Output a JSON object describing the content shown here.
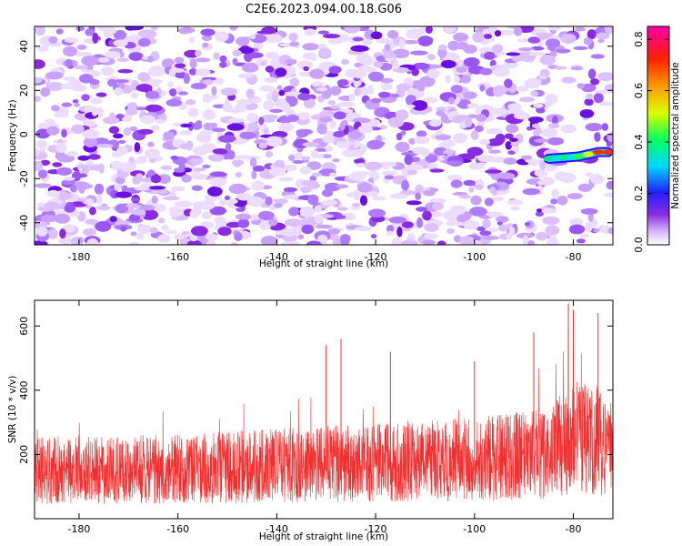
{
  "title": "C2E6.2023.094.00.18.G06",
  "chart_data": [
    {
      "type": "heatmap",
      "xlabel": "Height of straight line (km)",
      "ylabel": "Frequency (Hz)",
      "xlim": [
        -189,
        -72
      ],
      "ylim": [
        -50,
        49
      ],
      "x_ticks": [
        -180,
        -160,
        -140,
        -120,
        -100,
        -80
      ],
      "y_ticks": [
        -40,
        -20,
        0,
        20,
        40
      ],
      "colorbar": {
        "label": "Normalized spectral amplitude",
        "range": [
          0,
          0.85
        ],
        "ticks": [
          0.0,
          0.2,
          0.4,
          0.6,
          0.8
        ],
        "tick_labels": [
          "0.0",
          "0.2",
          "0.4",
          "0.6",
          "0.8"
        ],
        "colormap": "rainbow (white-violet-blue-cyan-green-yellow-red-magenta)"
      },
      "signal": {
        "description_points": [
          {
            "x": -85,
            "y": -11,
            "value": 0.3
          },
          {
            "x": -82,
            "y": -10.5,
            "value": 0.35
          },
          {
            "x": -79,
            "y": -10,
            "value": 0.4
          },
          {
            "x": -77,
            "y": -9,
            "value": 0.5
          },
          {
            "x": -75,
            "y": -8,
            "value": 0.85
          },
          {
            "x": -73,
            "y": -8,
            "value": 0.8
          }
        ]
      },
      "background_level": [
        0.0,
        0.15
      ]
    },
    {
      "type": "line",
      "xlabel": "Height of straight line (km)",
      "ylabel": "SNR (10 * v/v)",
      "xlim": [
        -189,
        -72
      ],
      "ylim": [
        0,
        680
      ],
      "x_ticks": [
        -180,
        -160,
        -140,
        -120,
        -100,
        -80
      ],
      "y_ticks": [
        200,
        400,
        600
      ],
      "series": [
        {
          "color": "#f03030",
          "trend": [
            {
              "x": -189,
              "mean": 150,
              "range": [
                40,
                320
              ]
            },
            {
              "x": -160,
              "mean": 155,
              "range": [
                40,
                340
              ]
            },
            {
              "x": -140,
              "mean": 165,
              "range": [
                50,
                380
              ]
            },
            {
              "x": -120,
              "mean": 175,
              "range": [
                50,
                400
              ]
            },
            {
              "x": -100,
              "mean": 185,
              "range": [
                60,
                420
              ]
            },
            {
              "x": -85,
              "mean": 205,
              "range": [
                60,
                480
              ]
            },
            {
              "x": -80,
              "mean": 260,
              "range": [
                80,
                670
              ]
            },
            {
              "x": -72,
              "mean": 220,
              "range": [
                80,
                600
              ]
            }
          ],
          "peaks": [
            {
              "x": -81,
              "y": 670
            },
            {
              "x": -80,
              "y": 650
            },
            {
              "x": -75,
              "y": 640
            },
            {
              "x": -130,
              "y": 540
            },
            {
              "x": -127,
              "y": 560
            },
            {
              "x": -117,
              "y": 520
            },
            {
              "x": -100,
              "y": 490
            },
            {
              "x": -88,
              "y": 580
            }
          ]
        }
      ]
    }
  ]
}
